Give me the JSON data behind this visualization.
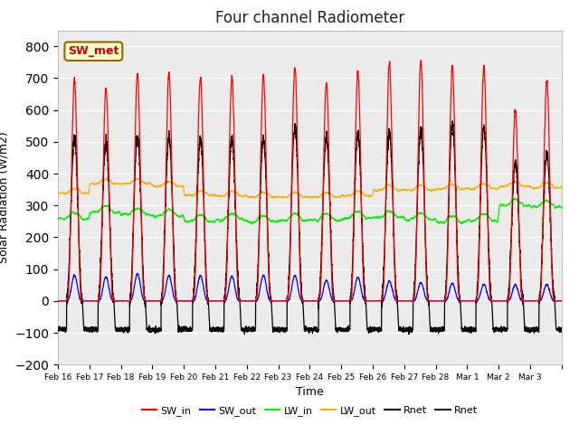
{
  "title": "Four channel Radiometer",
  "xlabel": "Time",
  "ylabel": "Solar Radiation (W/m2)",
  "ylim": [
    -200,
    850
  ],
  "yticks": [
    -200,
    -100,
    0,
    100,
    200,
    300,
    400,
    500,
    600,
    700,
    800
  ],
  "bg_color": "#ebebeb",
  "fig_color": "#ffffff",
  "annotation_text": "SW_met",
  "annotation_color": "#cc0000",
  "annotation_bg": "#ffffcc",
  "annotation_border": "#996600",
  "colors": {
    "SW_in": "#ff0000",
    "SW_out": "#0000ff",
    "LW_in": "#00ee00",
    "LW_out": "#ffaa00",
    "Rnet": "#000000"
  },
  "legend_labels": [
    "SW_in",
    "SW_out",
    "LW_in",
    "LW_out",
    "Rnet",
    "Rnet"
  ],
  "n_days": 16,
  "start_day": 16,
  "peak_SW_in": [
    695,
    670,
    715,
    715,
    705,
    705,
    710,
    735,
    685,
    720,
    745,
    755,
    735,
    735,
    600,
    695
  ],
  "peak_SW_out": [
    80,
    75,
    85,
    80,
    80,
    78,
    80,
    80,
    65,
    75,
    62,
    58,
    55,
    52,
    50,
    52
  ],
  "LW_in_base": [
    258,
    278,
    272,
    268,
    250,
    255,
    248,
    253,
    255,
    260,
    262,
    256,
    246,
    252,
    300,
    295
  ],
  "LW_out_base": [
    338,
    368,
    368,
    360,
    332,
    330,
    326,
    326,
    326,
    330,
    348,
    348,
    352,
    352,
    360,
    356
  ],
  "Rnet_night": -90,
  "Rnet_peak": [
    510,
    500,
    520,
    515,
    510,
    510,
    510,
    545,
    515,
    530,
    530,
    535,
    555,
    545,
    430,
    460
  ]
}
